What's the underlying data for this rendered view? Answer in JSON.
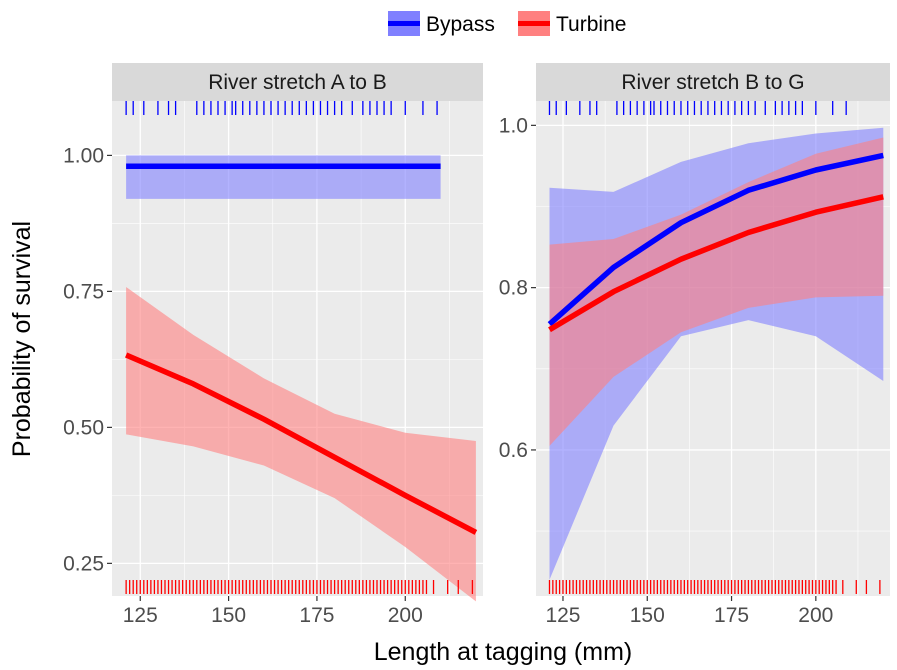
{
  "chart_data": {
    "type": "line",
    "xlabel": "Length at tagging (mm)",
    "ylabel": "Probability of survival",
    "legend": {
      "placement": "top",
      "entries": [
        {
          "name": "Bypass",
          "color": "#0000ff"
        },
        {
          "name": "Turbine",
          "color": "#ff0000"
        }
      ]
    },
    "grid": true,
    "colors": {
      "panel_bg": "#ebebeb",
      "strip_bg": "#d9d9d9",
      "grid": "#ffffff",
      "bypass_band": "#8080ff",
      "turbine_band": "#ff8080"
    },
    "panels": [
      {
        "title": "River stretch A to B",
        "xlim": [
          117,
          222
        ],
        "ylim": [
          0.19,
          1.1
        ],
        "x_ticks": [
          125,
          150,
          175,
          200
        ],
        "x_tick_labels": [
          "125",
          "150",
          "175",
          "200"
        ],
        "y_ticks": [
          0.25,
          0.5,
          0.75,
          1.0
        ],
        "y_tick_labels": [
          "0.25",
          "0.50",
          "0.75",
          "1.00"
        ],
        "series": [
          {
            "name": "Bypass",
            "x": [
              121,
              210
            ],
            "y": [
              0.98,
              0.98
            ],
            "lower": [
              0.92,
              0.92
            ],
            "upper": [
              1.0,
              1.0
            ],
            "rug_x": [
              121,
              123,
              126,
              130,
              133,
              135,
              141,
              143,
              145,
              147,
              149,
              151,
              152,
              154,
              156,
              158,
              160,
              162,
              164,
              166,
              168,
              170,
              172,
              174,
              176,
              178,
              180,
              182,
              185,
              188,
              190,
              192,
              194,
              196,
              200,
              205,
              209
            ]
          },
          {
            "name": "Turbine",
            "x": [
              121,
              140,
              160,
              180,
              200,
              220
            ],
            "y": [
              0.633,
              0.58,
              0.515,
              0.445,
              0.375,
              0.307
            ],
            "lower": [
              0.487,
              0.465,
              0.43,
              0.37,
              0.28,
              0.18
            ],
            "upper": [
              0.758,
              0.67,
              0.59,
              0.525,
              0.49,
              0.475
            ],
            "rug_x": [
              121,
              122,
              123,
              124,
              125,
              126,
              127,
              128,
              129,
              130,
              131,
              132,
              133,
              134,
              135,
              136,
              137,
              138,
              139,
              140,
              141,
              142,
              143,
              144,
              145,
              146,
              147,
              148,
              149,
              150,
              151,
              152,
              153,
              154,
              155,
              156,
              157,
              158,
              159,
              160,
              161,
              162,
              163,
              164,
              165,
              166,
              167,
              168,
              169,
              170,
              171,
              172,
              173,
              174,
              175,
              176,
              177,
              178,
              179,
              180,
              181,
              182,
              183,
              184,
              185,
              186,
              187,
              188,
              189,
              190,
              191,
              192,
              193,
              194,
              195,
              196,
              197,
              198,
              199,
              200,
              201,
              202,
              203,
              204,
              205,
              206,
              208,
              212,
              215,
              219
            ]
          }
        ]
      },
      {
        "title": "River stretch B to G",
        "xlim": [
          117,
          222
        ],
        "ylim": [
          0.42,
          1.03
        ],
        "x_ticks": [
          125,
          150,
          175,
          200
        ],
        "x_tick_labels": [
          "125",
          "150",
          "175",
          "200"
        ],
        "y_ticks": [
          0.6,
          0.8,
          1.0
        ],
        "y_tick_labels": [
          "0.6",
          "0.8",
          "1.0"
        ],
        "series": [
          {
            "name": "Bypass",
            "x": [
              121,
              140,
              160,
              180,
              200,
              220
            ],
            "y": [
              0.755,
              0.825,
              0.88,
              0.92,
              0.945,
              0.963
            ],
            "lower": [
              0.44,
              0.63,
              0.74,
              0.76,
              0.74,
              0.685
            ],
            "upper": [
              0.923,
              0.918,
              0.955,
              0.978,
              0.99,
              0.997
            ],
            "rug_x": [
              121,
              123,
              126,
              130,
              133,
              135,
              141,
              143,
              145,
              147,
              149,
              151,
              152,
              154,
              156,
              158,
              160,
              162,
              164,
              166,
              168,
              170,
              172,
              174,
              176,
              178,
              180,
              182,
              185,
              188,
              190,
              192,
              194,
              196,
              200,
              205,
              209
            ]
          },
          {
            "name": "Turbine",
            "x": [
              121,
              140,
              160,
              180,
              200,
              220
            ],
            "y": [
              0.748,
              0.795,
              0.835,
              0.868,
              0.893,
              0.912
            ],
            "lower": [
              0.605,
              0.69,
              0.745,
              0.775,
              0.788,
              0.79
            ],
            "upper": [
              0.853,
              0.86,
              0.89,
              0.93,
              0.965,
              0.985
            ],
            "rug_x": [
              121,
              122,
              123,
              124,
              125,
              126,
              127,
              128,
              129,
              130,
              131,
              132,
              133,
              134,
              135,
              136,
              137,
              138,
              139,
              140,
              141,
              142,
              143,
              144,
              145,
              146,
              147,
              148,
              149,
              150,
              151,
              152,
              153,
              154,
              155,
              156,
              157,
              158,
              159,
              160,
              161,
              162,
              163,
              164,
              165,
              166,
              167,
              168,
              169,
              170,
              171,
              172,
              173,
              174,
              175,
              176,
              177,
              178,
              179,
              180,
              181,
              182,
              183,
              184,
              185,
              186,
              187,
              188,
              189,
              190,
              191,
              192,
              193,
              194,
              195,
              196,
              197,
              198,
              199,
              200,
              201,
              202,
              203,
              204,
              205,
              206,
              208,
              212,
              215,
              219
            ]
          }
        ]
      }
    ]
  }
}
